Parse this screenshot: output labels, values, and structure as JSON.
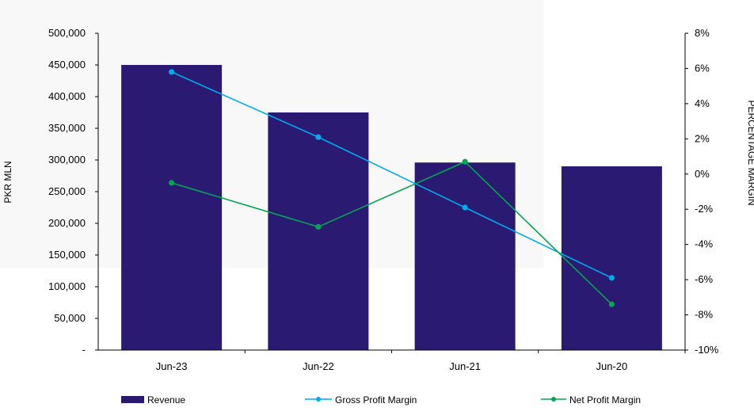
{
  "chart_data": {
    "type": "bar",
    "categories": [
      "Jun-23",
      "Jun-22",
      "Jun-21",
      "Jun-20"
    ],
    "left_axis": {
      "label": "PKR MLN",
      "ylim": [
        0,
        500000
      ],
      "ticks": [
        {
          "value": 0,
          "label": "-"
        },
        {
          "value": 50000,
          "label": "50,000"
        },
        {
          "value": 100000,
          "label": "100,000"
        },
        {
          "value": 150000,
          "label": "150,000"
        },
        {
          "value": 200000,
          "label": "200,000"
        },
        {
          "value": 250000,
          "label": "250,000"
        },
        {
          "value": 300000,
          "label": "300,000"
        },
        {
          "value": 350000,
          "label": "350,000"
        },
        {
          "value": 400000,
          "label": "400,000"
        },
        {
          "value": 450000,
          "label": "450,000"
        },
        {
          "value": 500000,
          "label": "500,000"
        }
      ]
    },
    "right_axis": {
      "label": "PERCENTAGE MARGIN",
      "ylim": [
        -10,
        8
      ],
      "ticks": [
        {
          "value": 8,
          "label": "8%"
        },
        {
          "value": 6,
          "label": "6%"
        },
        {
          "value": 4,
          "label": "4%"
        },
        {
          "value": 2,
          "label": "2%"
        },
        {
          "value": 0,
          "label": "0%"
        },
        {
          "value": -2,
          "label": "-2%"
        },
        {
          "value": -4,
          "label": "-4%"
        },
        {
          "value": -6,
          "label": "-6%"
        },
        {
          "value": -8,
          "label": "-8%"
        },
        {
          "value": -10,
          "label": "-10%"
        }
      ]
    },
    "series": [
      {
        "name": "Revenue",
        "kind": "bar",
        "axis": "left",
        "color": "#2b1a72",
        "values": [
          450000,
          375000,
          296000,
          290000
        ]
      },
      {
        "name": "Gross Profit Margin",
        "kind": "line",
        "axis": "right",
        "color": "#00aaee",
        "values": [
          5.8,
          2.1,
          -1.9,
          -5.9
        ]
      },
      {
        "name": "Net Profit Margin",
        "kind": "line",
        "axis": "right",
        "color": "#00a651",
        "values": [
          -0.5,
          -3.0,
          0.7,
          -7.4
        ]
      }
    ],
    "grid": false,
    "legend_position": "bottom"
  }
}
